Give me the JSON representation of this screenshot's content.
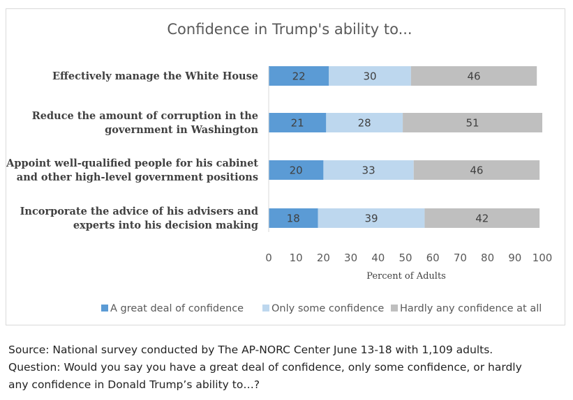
{
  "chart_data": {
    "type": "bar",
    "orientation": "horizontal",
    "stacked": true,
    "title": "Confidence in Trump's ability to...",
    "categories": [
      [
        "Effectively manage the White House"
      ],
      [
        "Reduce the amount of corruption in the",
        "government in Washington"
      ],
      [
        "Appoint well-qualified people for his cabinet",
        "and other high-level government positions"
      ],
      [
        "Incorporate the advice of his advisers and",
        "experts into his decision making"
      ]
    ],
    "series": [
      {
        "name": "A great deal of confidence",
        "color": "#5b9bd5",
        "values": [
          22,
          21,
          20,
          18
        ]
      },
      {
        "name": "Only some confidence",
        "color": "#bdd7ee",
        "values": [
          30,
          28,
          33,
          39
        ]
      },
      {
        "name": "Hardly any confidence at all",
        "color": "#bfbfbf",
        "values": [
          46,
          51,
          46,
          42
        ]
      }
    ],
    "xlabel": "Percent of Adults",
    "xlim": [
      0,
      100
    ],
    "xticks": [
      0,
      10,
      20,
      30,
      40,
      50,
      60,
      70,
      80,
      90,
      100
    ],
    "grid": false,
    "legend": "bottom"
  },
  "source_note": [
    "Source: National survey conducted by The AP-NORC Center June 13-18 with 1,109 adults.",
    "Question: Would you say you have a great deal of confidence, only some confidence, or hardly",
    "any confidence in Donald Trump’s ability to…?"
  ]
}
